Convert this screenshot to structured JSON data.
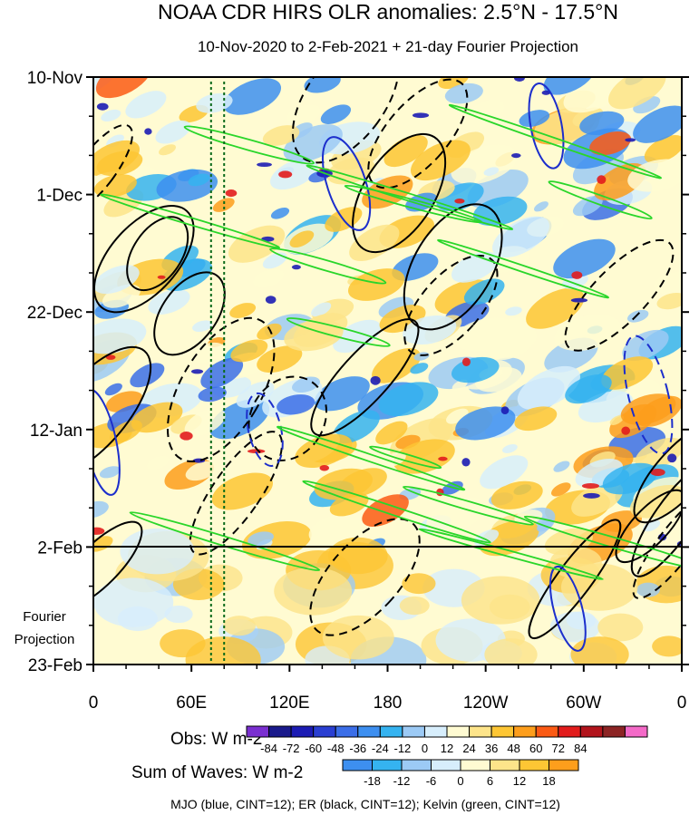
{
  "chart_data": {
    "type": "heatmap",
    "title": "NOAA CDR HIRS OLR anomalies: 2.5°N - 17.5°N",
    "subtitle": "10-Nov-2020 to 2-Feb-2021 + 21-day Fourier Projection",
    "x_tick_labels": [
      "0",
      "60E",
      "120E",
      "180",
      "120W",
      "60W",
      "0"
    ],
    "x_tick_degrees_east": [
      0,
      60,
      120,
      180,
      240,
      300,
      360
    ],
    "xlim_degrees_east": [
      0,
      360
    ],
    "y_tick_labels": [
      "10-Nov",
      "1-Dec",
      "22-Dec",
      "12-Jan",
      "2-Feb",
      "23-Feb"
    ],
    "y_tick_dates": [
      "2020-11-10",
      "2020-12-01",
      "2020-12-22",
      "2021-01-12",
      "2021-02-02",
      "2021-02-23"
    ],
    "ylim_dates": [
      "2020-11-10",
      "2021-02-23"
    ],
    "y_axis_reversed": true,
    "projection_start_date": "2021-02-02",
    "projection_label_lines": [
      "Fourier",
      "Projection"
    ],
    "vertical_reference_lines_degrees_east": [
      72,
      80
    ],
    "obs_colorbar": {
      "label": "Obs: W m-2",
      "tick_labels": [
        "-84",
        "-72",
        "-60",
        "-48",
        "-36",
        "-24",
        "-12",
        "0",
        "12",
        "24",
        "36",
        "48",
        "60",
        "72",
        "84"
      ],
      "colors": [
        "#7a2fd0",
        "#1a1a8c",
        "#1c1cb4",
        "#2a3fd2",
        "#3b6ee8",
        "#3d8ff0",
        "#35b3f0",
        "#9ccaf5",
        "#d7eefc",
        "#fffbd2",
        "#fde48a",
        "#fdc634",
        "#fd9e1c",
        "#fb5a14",
        "#e21c1c",
        "#b2141c",
        "#8c2424",
        "#f46ac8"
      ]
    },
    "waves_colorbar": {
      "label": "Sum of Waves: W m-2",
      "tick_labels": [
        "-18",
        "-12",
        "-6",
        "0",
        "6",
        "12",
        "18"
      ],
      "colors": [
        "#3d8ff0",
        "#35b3f0",
        "#9ccaf5",
        "#d7eefc",
        "#fffbd2",
        "#fde48a",
        "#fdc634",
        "#fd9e1c"
      ]
    },
    "legend_text": "MJO (blue, CINT=12); ER (black, CINT=12); Kelvin (green, CINT=12)",
    "grid": false,
    "colors": {
      "mjo": "#1c2ecc",
      "er": "#000000",
      "kelvin": "#2ad62a",
      "positive_fill": "#fdc634",
      "negative_fill": "#3d8ff0"
    }
  }
}
